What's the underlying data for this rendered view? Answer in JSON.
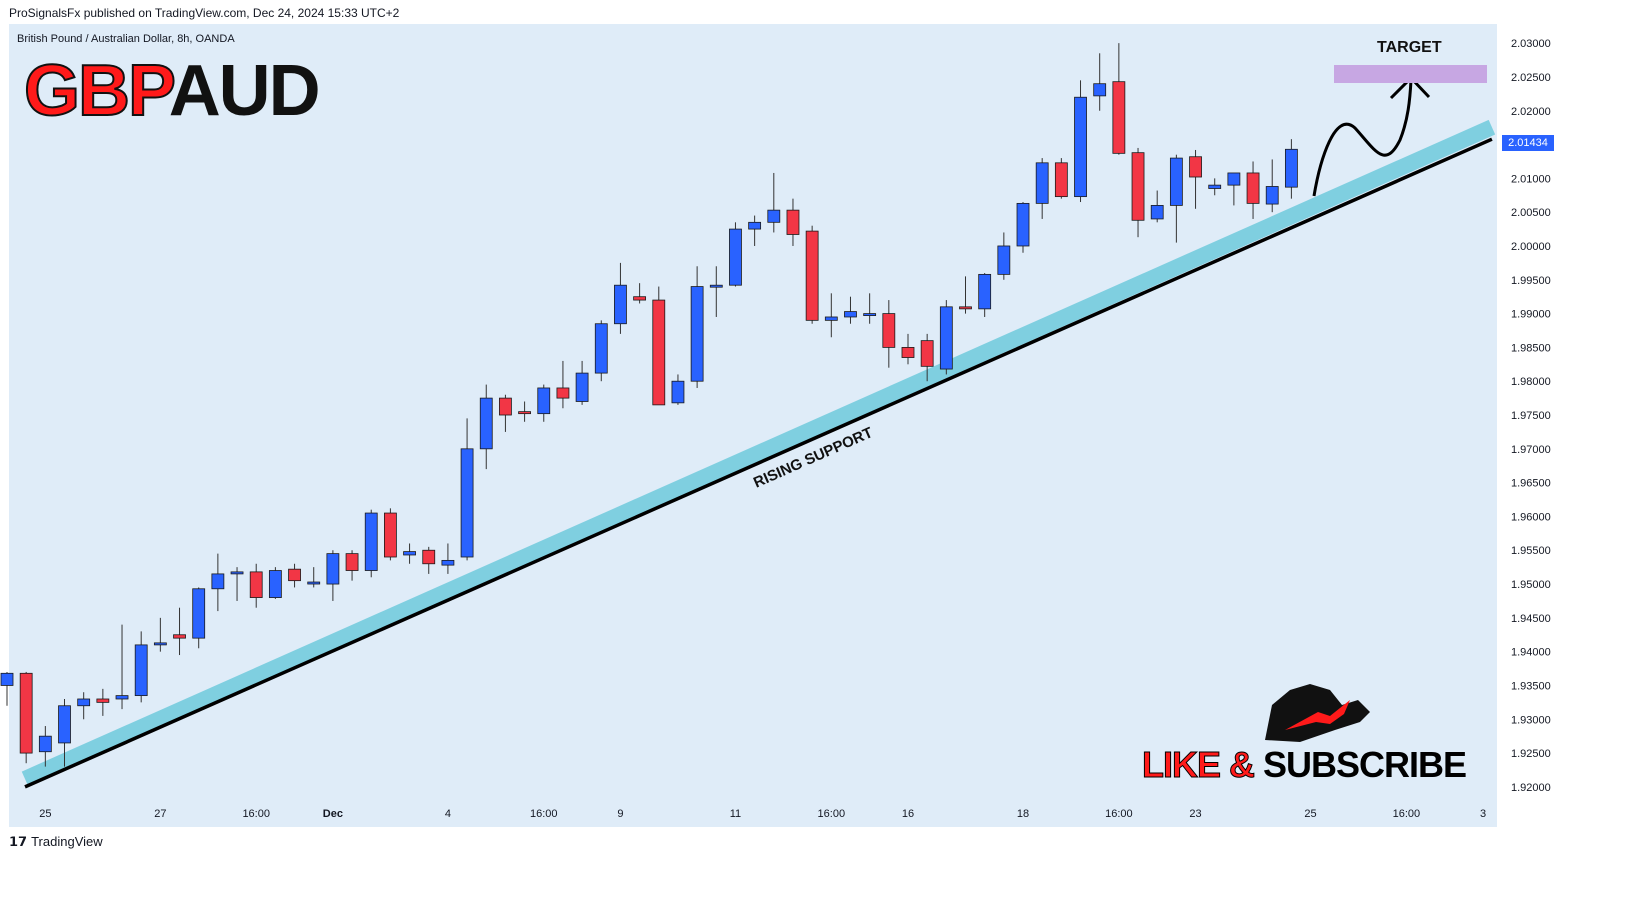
{
  "header": {
    "published_line": "ProSignalsFx published on TradingView.com, Dec 24, 2024 15:33 UTC+2",
    "symbol_line": "British Pound / Australian Dollar, 8h, OANDA"
  },
  "logo": {
    "part1": "GBP",
    "part2": "AUD"
  },
  "annotations": {
    "target": "TARGET",
    "support": "RISING SUPPORT",
    "cta_red": "LIKE & ",
    "cta_black": "SUBSCRIBE"
  },
  "last_price_tag": "2.01434",
  "footer": {
    "brand": "TradingView"
  },
  "colors": {
    "up": "#2962ff",
    "down": "#f23645",
    "support_band": "#7fcfe0",
    "target_zone": "#c7a7e3",
    "background": "#dfecf8"
  },
  "chart_data": {
    "type": "candlestick",
    "title": "British Pound / Australian Dollar, 8h, OANDA",
    "ylim": [
      1.9188,
      2.0315
    ],
    "y_ticks": [
      "1.92000",
      "1.92500",
      "1.93000",
      "1.93500",
      "1.94000",
      "1.94500",
      "1.95000",
      "1.95500",
      "1.96000",
      "1.96500",
      "1.97000",
      "1.97500",
      "1.98000",
      "1.98500",
      "1.99000",
      "1.99500",
      "2.00000",
      "2.00500",
      "2.01000",
      "2.01500",
      "2.02000",
      "2.02500",
      "2.03000"
    ],
    "x_ticks": [
      {
        "label": "25",
        "bar": 2
      },
      {
        "label": "27",
        "bar": 8
      },
      {
        "label": "16:00",
        "bar": 13
      },
      {
        "label": "Dec",
        "bar": 17
      },
      {
        "label": "4",
        "bar": 23
      },
      {
        "label": "16:00",
        "bar": 28
      },
      {
        "label": "9",
        "bar": 32
      },
      {
        "label": "11",
        "bar": 38
      },
      {
        "label": "16:00",
        "bar": 43
      },
      {
        "label": "16",
        "bar": 47
      },
      {
        "label": "18",
        "bar": 53
      },
      {
        "label": "16:00",
        "bar": 58
      },
      {
        "label": "23",
        "bar": 62
      },
      {
        "label": "25",
        "bar": 68
      },
      {
        "label": "16:00",
        "bar": 73
      },
      {
        "label": "3",
        "bar": 77
      }
    ],
    "candles": [
      {
        "o": 1.935,
        "h": 1.937,
        "l": 1.932,
        "c": 1.9368
      },
      {
        "o": 1.9368,
        "h": 1.937,
        "l": 1.9235,
        "c": 1.925
      },
      {
        "o": 1.9252,
        "h": 1.929,
        "l": 1.923,
        "c": 1.9275
      },
      {
        "o": 1.9265,
        "h": 1.933,
        "l": 1.923,
        "c": 1.932
      },
      {
        "o": 1.932,
        "h": 1.934,
        "l": 1.93,
        "c": 1.933
      },
      {
        "o": 1.933,
        "h": 1.9345,
        "l": 1.9305,
        "c": 1.9325
      },
      {
        "o": 1.933,
        "h": 1.944,
        "l": 1.9315,
        "c": 1.9335
      },
      {
        "o": 1.9335,
        "h": 1.943,
        "l": 1.9325,
        "c": 1.941
      },
      {
        "o": 1.941,
        "h": 1.945,
        "l": 1.94,
        "c": 1.9413
      },
      {
        "o": 1.9425,
        "h": 1.9465,
        "l": 1.9395,
        "c": 1.942
      },
      {
        "o": 1.942,
        "h": 1.9495,
        "l": 1.9405,
        "c": 1.9493
      },
      {
        "o": 1.9493,
        "h": 1.9545,
        "l": 1.946,
        "c": 1.9515
      },
      {
        "o": 1.9515,
        "h": 1.9525,
        "l": 1.9475,
        "c": 1.9518
      },
      {
        "o": 1.9518,
        "h": 1.953,
        "l": 1.9465,
        "c": 1.948
      },
      {
        "o": 1.948,
        "h": 1.9525,
        "l": 1.9478,
        "c": 1.952
      },
      {
        "o": 1.9522,
        "h": 1.953,
        "l": 1.9495,
        "c": 1.9505
      },
      {
        "o": 1.9503,
        "h": 1.9525,
        "l": 1.9495,
        "c": 1.9503
      },
      {
        "o": 1.95,
        "h": 1.955,
        "l": 1.9475,
        "c": 1.9545
      },
      {
        "o": 1.9545,
        "h": 1.955,
        "l": 1.9505,
        "c": 1.952
      },
      {
        "o": 1.952,
        "h": 1.961,
        "l": 1.951,
        "c": 1.9605
      },
      {
        "o": 1.9605,
        "h": 1.9612,
        "l": 1.9535,
        "c": 1.954
      },
      {
        "o": 1.9543,
        "h": 1.956,
        "l": 1.953,
        "c": 1.9548
      },
      {
        "o": 1.955,
        "h": 1.9555,
        "l": 1.9515,
        "c": 1.953
      },
      {
        "o": 1.9528,
        "h": 1.956,
        "l": 1.9515,
        "c": 1.9535
      },
      {
        "o": 1.954,
        "h": 1.9745,
        "l": 1.9535,
        "c": 1.97
      },
      {
        "o": 1.97,
        "h": 1.9795,
        "l": 1.967,
        "c": 1.9775
      },
      {
        "o": 1.9775,
        "h": 1.978,
        "l": 1.9725,
        "c": 1.975
      },
      {
        "o": 1.9755,
        "h": 1.977,
        "l": 1.974,
        "c": 1.9752
      },
      {
        "o": 1.9752,
        "h": 1.9795,
        "l": 1.974,
        "c": 1.979
      },
      {
        "o": 1.979,
        "h": 1.983,
        "l": 1.976,
        "c": 1.9775
      },
      {
        "o": 1.977,
        "h": 1.983,
        "l": 1.9765,
        "c": 1.9812
      },
      {
        "o": 1.9812,
        "h": 1.989,
        "l": 1.98,
        "c": 1.9885
      },
      {
        "o": 1.9885,
        "h": 1.9975,
        "l": 1.987,
        "c": 1.9942
      },
      {
        "o": 1.9925,
        "h": 1.9945,
        "l": 1.9915,
        "c": 1.992
      },
      {
        "o": 1.992,
        "h": 1.994,
        "l": 1.9765,
        "c": 1.9765
      },
      {
        "o": 1.9768,
        "h": 1.981,
        "l": 1.9765,
        "c": 1.98
      },
      {
        "o": 1.98,
        "h": 1.997,
        "l": 1.979,
        "c": 1.994
      },
      {
        "o": 1.994,
        "h": 1.997,
        "l": 1.9895,
        "c": 1.9942
      },
      {
        "o": 1.9942,
        "h": 2.0035,
        "l": 1.994,
        "c": 2.0025
      },
      {
        "o": 2.0025,
        "h": 2.0045,
        "l": 2.0,
        "c": 2.0035
      },
      {
        "o": 2.0035,
        "h": 2.0108,
        "l": 2.002,
        "c": 2.0053
      },
      {
        "o": 2.0053,
        "h": 2.007,
        "l": 2.0,
        "c": 2.0017
      },
      {
        "o": 2.0022,
        "h": 2.003,
        "l": 1.9885,
        "c": 1.989
      },
      {
        "o": 1.989,
        "h": 1.993,
        "l": 1.9865,
        "c": 1.9895
      },
      {
        "o": 1.9895,
        "h": 1.9925,
        "l": 1.9885,
        "c": 1.9903
      },
      {
        "o": 1.99,
        "h": 1.993,
        "l": 1.9885,
        "c": 1.99
      },
      {
        "o": 1.99,
        "h": 1.992,
        "l": 1.982,
        "c": 1.985
      },
      {
        "o": 1.985,
        "h": 1.987,
        "l": 1.9825,
        "c": 1.9835
      },
      {
        "o": 1.986,
        "h": 1.987,
        "l": 1.98,
        "c": 1.9822
      },
      {
        "o": 1.9818,
        "h": 1.992,
        "l": 1.981,
        "c": 1.991
      },
      {
        "o": 1.991,
        "h": 1.9955,
        "l": 1.99,
        "c": 1.9907
      },
      {
        "o": 1.9907,
        "h": 1.996,
        "l": 1.9895,
        "c": 1.9958
      },
      {
        "o": 1.9958,
        "h": 2.002,
        "l": 1.995,
        "c": 2.0
      },
      {
        "o": 2.0,
        "h": 2.0065,
        "l": 1.999,
        "c": 2.0063
      },
      {
        "o": 2.0063,
        "h": 2.013,
        "l": 2.004,
        "c": 2.0123
      },
      {
        "o": 2.0123,
        "h": 2.013,
        "l": 2.007,
        "c": 2.0073
      },
      {
        "o": 2.0073,
        "h": 2.0245,
        "l": 2.0065,
        "c": 2.022
      },
      {
        "o": 2.0222,
        "h": 2.0285,
        "l": 2.02,
        "c": 2.024
      },
      {
        "o": 2.0243,
        "h": 2.03,
        "l": 2.0135,
        "c": 2.0137
      },
      {
        "o": 2.0138,
        "h": 2.0145,
        "l": 2.0013,
        "c": 2.0038
      },
      {
        "o": 2.004,
        "h": 2.0082,
        "l": 2.0035,
        "c": 2.006
      },
      {
        "o": 2.006,
        "h": 2.0135,
        "l": 2.0005,
        "c": 2.013
      },
      {
        "o": 2.0132,
        "h": 2.0142,
        "l": 2.0055,
        "c": 2.0102
      },
      {
        "o": 2.0085,
        "h": 2.01,
        "l": 2.0075,
        "c": 2.009
      },
      {
        "o": 2.009,
        "h": 2.0108,
        "l": 2.006,
        "c": 2.0108
      },
      {
        "o": 2.0108,
        "h": 2.0125,
        "l": 2.004,
        "c": 2.0063
      },
      {
        "o": 2.0062,
        "h": 2.0128,
        "l": 2.005,
        "c": 2.0088
      },
      {
        "o": 2.0087,
        "h": 2.0158,
        "l": 2.007,
        "c": 2.0143
      }
    ],
    "support_line": {
      "from": {
        "bar": 0,
        "price": 1.92
      },
      "to": {
        "bar": 76,
        "price": 2.0155
      }
    },
    "target_zone": [
      2.023,
      2.0255
    ]
  }
}
